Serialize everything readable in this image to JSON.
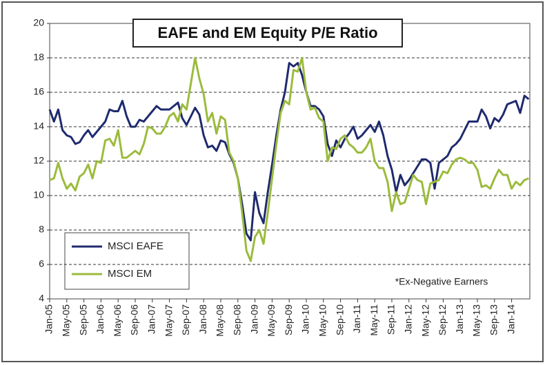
{
  "chart_data": {
    "type": "line",
    "title": "EAFE and EM Equity P/E Ratio",
    "annotation": "*Ex-Negative Earners",
    "categories": [
      "Jan-05",
      null,
      null,
      null,
      "May-05",
      null,
      null,
      null,
      "Sep-05",
      null,
      null,
      null,
      "Jan-06",
      null,
      null,
      null,
      "May-06",
      null,
      null,
      null,
      "Sep-06",
      null,
      null,
      null,
      "Jan-07",
      null,
      null,
      null,
      "May-07",
      null,
      null,
      null,
      "Sep-07",
      null,
      null,
      null,
      "Jan-08",
      null,
      null,
      null,
      "May-08",
      null,
      null,
      null,
      "Sep-08",
      null,
      null,
      null,
      "Jan-09",
      null,
      null,
      null,
      "May-09",
      null,
      null,
      null,
      "Sep-09",
      null,
      null,
      null,
      "Jan-10",
      null,
      null,
      null,
      "May-10",
      null,
      null,
      null,
      "Sep-10",
      null,
      null,
      null,
      "Jan-11",
      null,
      null,
      null,
      "May-11",
      null,
      null,
      null,
      "Sep-11",
      null,
      null,
      null,
      "Jan-12",
      null,
      null,
      null,
      "May-12",
      null,
      null,
      null,
      "Sep-12",
      null,
      null,
      null,
      "Jan-13",
      null,
      null,
      null,
      "May-13",
      null,
      null,
      null,
      "Sep-13",
      null,
      null,
      null,
      "Jan-14",
      null,
      null,
      null,
      null
    ],
    "series": [
      {
        "name": "MSCI EAFE",
        "color": "#1f2a6e",
        "values": [
          15.0,
          14.3,
          15.0,
          13.8,
          13.5,
          13.4,
          13.0,
          13.1,
          13.5,
          13.8,
          13.4,
          13.7,
          14.0,
          14.3,
          15.0,
          14.9,
          14.9,
          15.5,
          14.6,
          14.0,
          14.0,
          14.4,
          14.3,
          14.6,
          14.9,
          15.2,
          15.0,
          15.0,
          15.0,
          15.2,
          15.4,
          14.5,
          14.1,
          14.6,
          15.1,
          14.7,
          13.5,
          12.8,
          12.9,
          12.6,
          13.2,
          13.1,
          12.4,
          11.9,
          11.0,
          9.5,
          7.8,
          7.4,
          10.2,
          9.0,
          8.4,
          10.2,
          11.8,
          13.5,
          15.0,
          16.0,
          17.7,
          17.5,
          17.7,
          17.0,
          16.0,
          15.2,
          15.2,
          15.0,
          14.6,
          13.0,
          12.3,
          13.2,
          12.8,
          13.3,
          13.6,
          14.0,
          13.3,
          13.5,
          13.8,
          14.1,
          13.7,
          14.3,
          13.5,
          12.3,
          11.5,
          10.2,
          11.2,
          10.6,
          10.9,
          11.3,
          11.7,
          12.1,
          12.1,
          11.9,
          10.4,
          11.9,
          12.1,
          12.3,
          12.8,
          13.0,
          13.3,
          13.8,
          14.3,
          14.3,
          14.3,
          15.0,
          14.6,
          13.9,
          14.5,
          14.3,
          14.7,
          15.3,
          15.4,
          15.5,
          14.8,
          15.8,
          15.6
        ]
      },
      {
        "name": "MSCI EM",
        "color": "#9bbb3c",
        "values": [
          10.9,
          11.0,
          11.9,
          11.0,
          10.4,
          10.7,
          10.3,
          11.1,
          11.3,
          11.8,
          11.0,
          12.0,
          11.9,
          13.2,
          13.3,
          12.9,
          13.8,
          12.2,
          12.2,
          12.4,
          12.6,
          12.4,
          13.0,
          14.0,
          13.9,
          13.6,
          13.6,
          14.0,
          14.6,
          14.8,
          14.3,
          15.3,
          15.0,
          16.5,
          18.0,
          16.8,
          15.9,
          14.3,
          14.8,
          13.6,
          14.6,
          14.4,
          12.5,
          12.0,
          11.0,
          9.0,
          6.8,
          6.2,
          7.6,
          8.0,
          7.2,
          9.0,
          11.0,
          13.0,
          14.8,
          15.5,
          15.3,
          17.3,
          17.2,
          18.0,
          16.0,
          15.0,
          15.1,
          14.5,
          14.3,
          12.0,
          12.8,
          12.7,
          13.3,
          13.5,
          13.0,
          12.8,
          12.5,
          12.5,
          12.8,
          13.3,
          12.0,
          11.6,
          11.6,
          10.8,
          9.1,
          10.2,
          9.5,
          9.6,
          10.4,
          11.2,
          10.9,
          10.8,
          9.5,
          10.7,
          10.8,
          10.9,
          11.4,
          11.3,
          11.8,
          12.1,
          12.2,
          12.1,
          11.9,
          11.9,
          11.5,
          10.5,
          10.6,
          10.4,
          11.0,
          11.5,
          11.2,
          11.2,
          10.4,
          10.8,
          10.6,
          10.9,
          11.0
        ]
      }
    ],
    "ylim": [
      4,
      20
    ],
    "yticks": [
      4,
      6,
      8,
      10,
      12,
      14,
      16,
      18,
      20
    ],
    "grid": true,
    "legend": "lower left"
  }
}
